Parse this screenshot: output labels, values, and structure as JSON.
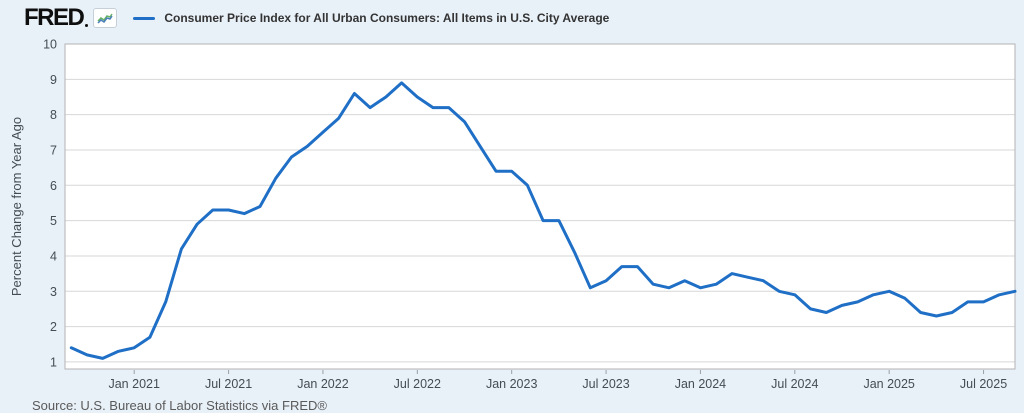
{
  "header": {
    "logo_text": "FRED",
    "logo_icon": "sparkline-chart-icon"
  },
  "source_note": "Source: U.S. Bureau of Labor Statistics via FRED®",
  "colors": {
    "page_background": "#e8f0f8",
    "plot_background": "#ffffff",
    "gridline": "#d7d7d7",
    "plot_border": "#b3b3b3",
    "axis_text": "#454c54",
    "tick_mark": "#9aa0a6",
    "legend_text": "#333333",
    "source_text": "#5a5a5a",
    "line": "#1f6fc6",
    "icon_line_blue": "#4a7ebb",
    "icon_line_green": "#66b366"
  },
  "chart_data": {
    "type": "line",
    "title": "Consumer Price Index for All Urban Consumers: All Items in U.S. City Average",
    "xlabel": "",
    "ylabel": "Percent Change from Year Ago",
    "ylim": [
      0.8,
      10
    ],
    "yticks": [
      1,
      2,
      3,
      4,
      5,
      6,
      7,
      8,
      9,
      10
    ],
    "grid": "horizontal",
    "legend_position": "top-left",
    "x": [
      "2020-09",
      "2020-10",
      "2020-11",
      "2020-12",
      "2021-01",
      "2021-02",
      "2021-03",
      "2021-04",
      "2021-05",
      "2021-06",
      "2021-07",
      "2021-08",
      "2021-09",
      "2021-10",
      "2021-11",
      "2021-12",
      "2022-01",
      "2022-02",
      "2022-03",
      "2022-04",
      "2022-05",
      "2022-06",
      "2022-07",
      "2022-08",
      "2022-09",
      "2022-10",
      "2022-11",
      "2022-12",
      "2023-01",
      "2023-02",
      "2023-03",
      "2023-04",
      "2023-05",
      "2023-06",
      "2023-07",
      "2023-08",
      "2023-09",
      "2023-10",
      "2023-11",
      "2023-12",
      "2024-01",
      "2024-02",
      "2024-03",
      "2024-04",
      "2024-05",
      "2024-06",
      "2024-07",
      "2024-08",
      "2024-09",
      "2024-10",
      "2024-11",
      "2024-12",
      "2025-01",
      "2025-02",
      "2025-03",
      "2025-04",
      "2025-05",
      "2025-06",
      "2025-07",
      "2025-08",
      "2025-09"
    ],
    "values": [
      1.4,
      1.2,
      1.1,
      1.3,
      1.4,
      1.7,
      2.7,
      4.2,
      4.9,
      5.3,
      5.3,
      5.2,
      5.4,
      6.2,
      6.8,
      7.1,
      7.5,
      7.9,
      8.6,
      8.2,
      8.5,
      8.9,
      8.5,
      8.2,
      8.2,
      7.8,
      7.1,
      6.4,
      6.4,
      6.0,
      5.0,
      5.0,
      4.1,
      3.1,
      3.3,
      3.7,
      3.7,
      3.2,
      3.1,
      3.3,
      3.1,
      3.2,
      3.5,
      3.4,
      3.3,
      3.0,
      2.9,
      2.5,
      2.4,
      2.6,
      2.7,
      2.9,
      3.0,
      2.8,
      2.4,
      2.3,
      2.4,
      2.7,
      2.7,
      2.9,
      3.0
    ],
    "xticks": [
      {
        "index": 4,
        "label": "Jan 2021"
      },
      {
        "index": 10,
        "label": "Jul 2021"
      },
      {
        "index": 16,
        "label": "Jan 2022"
      },
      {
        "index": 22,
        "label": "Jul 2022"
      },
      {
        "index": 28,
        "label": "Jan 2023"
      },
      {
        "index": 34,
        "label": "Jul 2023"
      },
      {
        "index": 40,
        "label": "Jan 2024"
      },
      {
        "index": 46,
        "label": "Jul 2024"
      },
      {
        "index": 52,
        "label": "Jan 2025"
      },
      {
        "index": 58,
        "label": "Jul 2025"
      }
    ]
  }
}
